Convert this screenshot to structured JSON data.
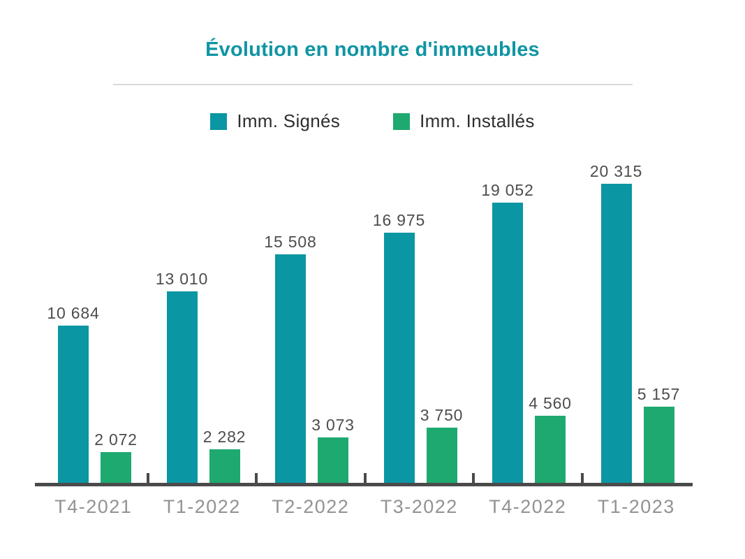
{
  "title": "Évolution en nombre d'immeubles",
  "legend": [
    {
      "label": "Imm. Signés",
      "color": "#0b96a3"
    },
    {
      "label": "Imm. Installés",
      "color": "#1ea970"
    }
  ],
  "colors": {
    "title": "#1095a3",
    "axis": "#4a4a4a",
    "value_labels": "#4d4d4d",
    "category_labels": "#929292",
    "divider": "#d9d9d9"
  },
  "chart_data": {
    "type": "bar",
    "title": "Évolution en nombre d'immeubles",
    "categories": [
      "T4-2021",
      "T1-2022",
      "T2-2022",
      "T3-2022",
      "T4-2022",
      "T1-2023"
    ],
    "series": [
      {
        "name": "Imm. Signés",
        "color": "#0b96a3",
        "values": [
          10684,
          13010,
          15508,
          16975,
          19052,
          20315
        ],
        "labels": [
          "10 684",
          "13 010",
          "15 508",
          "16 975",
          "19 052",
          "20 315"
        ]
      },
      {
        "name": "Imm. Installés",
        "color": "#1ea970",
        "values": [
          2072,
          2282,
          3073,
          3750,
          4560,
          5157
        ],
        "labels": [
          "2 072",
          "2 282",
          "3 073",
          "3 750",
          "4 560",
          "5 157"
        ]
      }
    ],
    "xlabel": "",
    "ylabel": "",
    "ylim": [
      0,
      20315
    ],
    "grid": false,
    "y_axis_visible": false,
    "legend_position": "top",
    "value_labels_visible": true
  }
}
